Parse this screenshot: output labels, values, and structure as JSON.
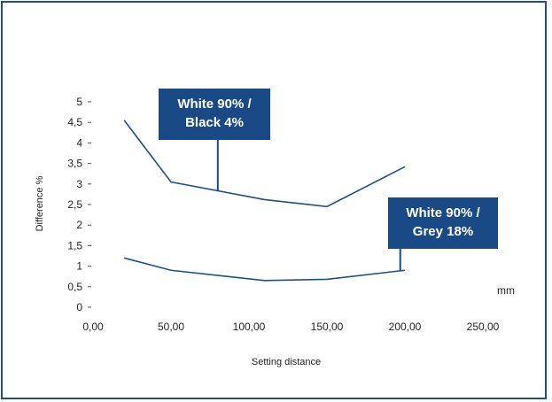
{
  "chart_data": {
    "type": "line",
    "xlabel": "Setting distance",
    "ylabel": "Difference %",
    "x_unit": "mm",
    "xlim": [
      0,
      250
    ],
    "ylim": [
      0,
      5
    ],
    "x_ticks": [
      "0,00",
      "50,00",
      "100,00",
      "150,00",
      "200,00",
      "250,00"
    ],
    "y_ticks": [
      "0",
      "0,5",
      "1",
      "1,5",
      "2",
      "2,5",
      "3",
      "3,5",
      "4",
      "4,5",
      "5"
    ],
    "series": [
      {
        "name": "White 90% / Black 4%",
        "callout_lines": [
          "White 90% /",
          "Black 4%"
        ],
        "color": "#1f4e8c",
        "x": [
          20,
          50,
          110,
          150,
          200
        ],
        "y": [
          4.55,
          3.05,
          2.62,
          2.45,
          3.42
        ]
      },
      {
        "name": "White 90% / Grey 18%",
        "callout_lines": [
          "White 90% /",
          "Grey 18%"
        ],
        "color": "#1f4e8c",
        "x": [
          20,
          50,
          110,
          150,
          200
        ],
        "y": [
          1.2,
          0.9,
          0.65,
          0.68,
          0.9
        ]
      }
    ]
  },
  "colors": {
    "frame": "#1f4e8c",
    "callout_bg": "#1a4a86",
    "line": "#1f4e8c"
  }
}
